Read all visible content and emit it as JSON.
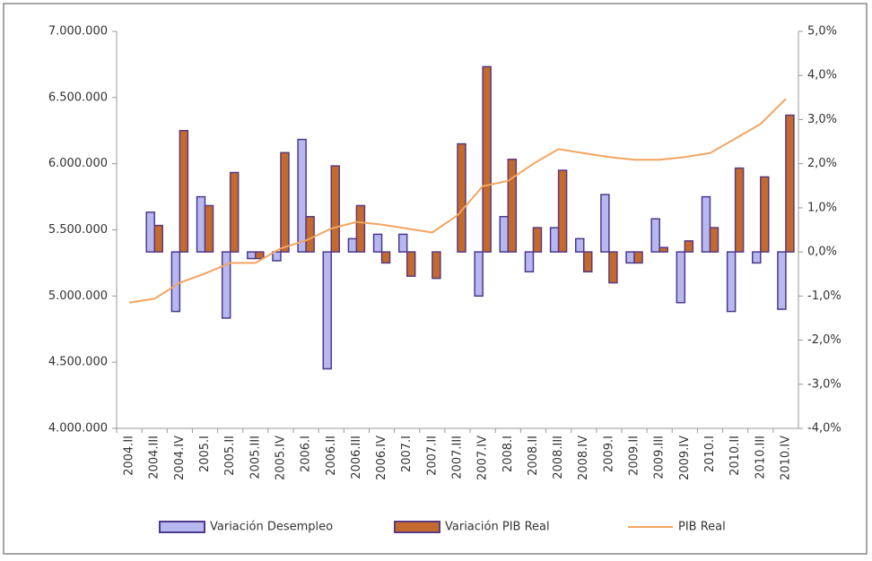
{
  "chart_data": {
    "type": "bar",
    "categories": [
      "2004.II",
      "2004.III",
      "2004.IV",
      "2005.I",
      "2005.II",
      "2005.III",
      "2005.IV",
      "2006.I",
      "2006.II",
      "2006.III",
      "2006.IV",
      "2007.I",
      "2007.II",
      "2007.III",
      "2007.IV",
      "2008.I",
      "2008.II",
      "2008.III",
      "2008.IV",
      "2009.I",
      "2009.II",
      "2009.III",
      "2009.IV",
      "2010.I",
      "2010.II",
      "2010.III",
      "2010.IV"
    ],
    "series": [
      {
        "name": "Variación Desempleo",
        "type": "bar",
        "axis": "y2",
        "color": "#b8b8f0",
        "stroke": "#4b3a8c",
        "values": [
          null,
          0.9,
          -1.35,
          1.25,
          -1.5,
          -0.15,
          -0.2,
          2.55,
          -2.65,
          0.3,
          0.4,
          0.4,
          null,
          null,
          -1.0,
          0.8,
          -0.45,
          0.55,
          0.3,
          1.3,
          -0.25,
          0.75,
          -1.15,
          1.25,
          -1.35,
          -0.25,
          -1.3
        ]
      },
      {
        "name": "Variación PIB Real",
        "type": "bar",
        "axis": "y2",
        "color": "#c46a2c",
        "stroke": "#5a3a80",
        "values": [
          null,
          0.6,
          2.75,
          1.05,
          1.8,
          -0.15,
          2.25,
          0.8,
          1.95,
          1.05,
          -0.25,
          -0.55,
          -0.6,
          2.45,
          4.2,
          2.1,
          0.55,
          1.85,
          -0.45,
          -0.7,
          -0.25,
          0.1,
          0.25,
          0.55,
          1.9,
          1.7,
          3.1
        ]
      },
      {
        "name": "PIB Real",
        "type": "line",
        "axis": "y",
        "color": "#f4a460",
        "values": [
          4950000,
          4980000,
          5100000,
          5170000,
          5250000,
          5250000,
          5360000,
          5420000,
          5510000,
          5560000,
          5540000,
          5510000,
          5480000,
          5610000,
          5830000,
          5870000,
          6000000,
          6110000,
          6080000,
          6050000,
          6030000,
          6030000,
          6050000,
          6080000,
          6190000,
          6300000,
          6490000
        ]
      }
    ],
    "ylim": [
      4000000,
      7000000
    ],
    "yticks": [
      {
        "value": 4000000,
        "label": "4.000.000"
      },
      {
        "value": 4500000,
        "label": "4.500.000"
      },
      {
        "value": 5000000,
        "label": "5.000.000"
      },
      {
        "value": 5500000,
        "label": "5.500.000"
      },
      {
        "value": 6000000,
        "label": "6.000.000"
      },
      {
        "value": 6500000,
        "label": "6.500.000"
      },
      {
        "value": 7000000,
        "label": "7.000.000"
      }
    ],
    "y2lim": [
      -4,
      5
    ],
    "y2ticks": [
      {
        "value": -4,
        "label": "-4,0%"
      },
      {
        "value": -3,
        "label": "-3,0%"
      },
      {
        "value": -2,
        "label": "-2,0%"
      },
      {
        "value": -1,
        "label": "-1,0%"
      },
      {
        "value": 0,
        "label": "0,0%"
      },
      {
        "value": 1,
        "label": "1,0%"
      },
      {
        "value": 2,
        "label": "2,0%"
      },
      {
        "value": 3,
        "label": "3,0%"
      },
      {
        "value": 4,
        "label": "4,0%"
      },
      {
        "value": 5,
        "label": "5,0%"
      }
    ],
    "grid": false,
    "legend": "bottom"
  }
}
